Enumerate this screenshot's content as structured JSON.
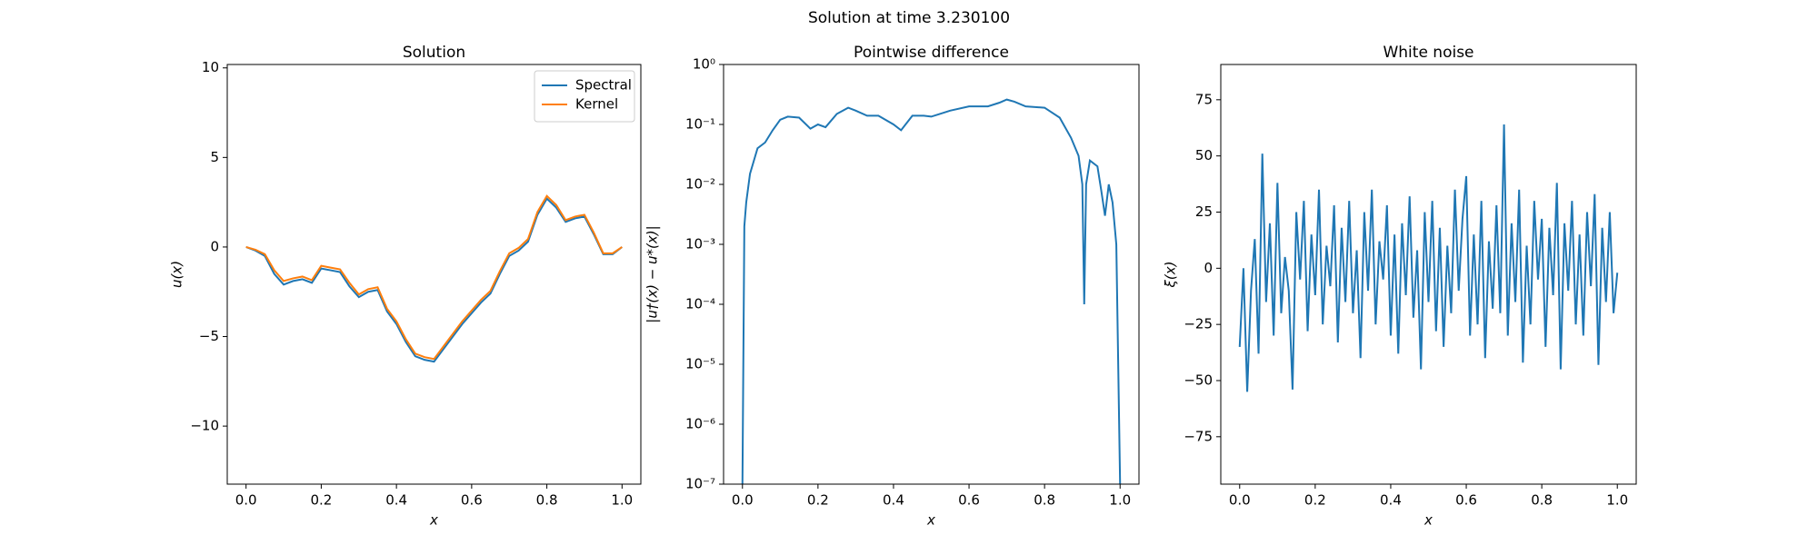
{
  "suptitle": "Solution at time 3.230100",
  "chart_data": [
    {
      "type": "line",
      "title": "Solution",
      "xlabel": "x",
      "ylabel": "u(x)",
      "legend": "upper right",
      "x": [
        0,
        0.025,
        0.05,
        0.075,
        0.1,
        0.125,
        0.15,
        0.175,
        0.2,
        0.225,
        0.25,
        0.275,
        0.3,
        0.325,
        0.35,
        0.375,
        0.4,
        0.425,
        0.45,
        0.475,
        0.5,
        0.525,
        0.55,
        0.575,
        0.6,
        0.625,
        0.65,
        0.675,
        0.7,
        0.725,
        0.75,
        0.775,
        0.8,
        0.825,
        0.85,
        0.875,
        0.9,
        0.925,
        0.95,
        0.975,
        1
      ],
      "series": [
        {
          "name": "Spectral",
          "color": "#1f77b4",
          "values": [
            0,
            -0.2,
            -0.5,
            -1.5,
            -2.1,
            -1.9,
            -1.8,
            -2.0,
            -1.2,
            -1.3,
            -1.4,
            -2.2,
            -2.8,
            -2.5,
            -2.4,
            -3.6,
            -4.3,
            -5.3,
            -6.1,
            -6.3,
            -6.4,
            -5.7,
            -5.0,
            -4.3,
            -3.7,
            -3.1,
            -2.6,
            -1.5,
            -0.5,
            -0.2,
            0.3,
            1.8,
            2.7,
            2.2,
            1.4,
            1.6,
            1.7,
            0.7,
            -0.4,
            -0.4,
            0
          ]
        },
        {
          "name": "Kernel",
          "color": "#ff7f0e",
          "values": [
            0,
            -0.15,
            -0.4,
            -1.3,
            -1.9,
            -1.75,
            -1.65,
            -1.85,
            -1.05,
            -1.15,
            -1.25,
            -2.0,
            -2.65,
            -2.35,
            -2.25,
            -3.45,
            -4.15,
            -5.15,
            -5.95,
            -6.15,
            -6.25,
            -5.55,
            -4.85,
            -4.15,
            -3.55,
            -2.95,
            -2.45,
            -1.35,
            -0.35,
            -0.05,
            0.45,
            1.95,
            2.85,
            2.35,
            1.5,
            1.7,
            1.8,
            0.8,
            -0.35,
            -0.35,
            0
          ]
        }
      ],
      "xlim": [
        -0.05,
        1.05
      ],
      "ylim": [
        -13.24,
        10.19
      ],
      "xticks": [
        {
          "value": 0,
          "label": "0.0"
        },
        0.2,
        0.4,
        0.6,
        0.8,
        {
          "value": 1,
          "label": "1.0"
        }
      ],
      "yticks": [
        {
          "value": -10,
          "label": "−10"
        },
        {
          "value": -5,
          "label": "−5"
        },
        0,
        5,
        10
      ]
    },
    {
      "type": "line",
      "title": "Pointwise difference",
      "xlabel": "x",
      "ylabel": "|u†(x) − u*(x)|",
      "log_y": true,
      "x": [
        0,
        0.005,
        0.01,
        0.02,
        0.04,
        0.06,
        0.08,
        0.1,
        0.12,
        0.15,
        0.18,
        0.2,
        0.22,
        0.25,
        0.28,
        0.3,
        0.33,
        0.36,
        0.4,
        0.42,
        0.45,
        0.48,
        0.5,
        0.55,
        0.6,
        0.65,
        0.68,
        0.7,
        0.72,
        0.75,
        0.8,
        0.84,
        0.87,
        0.89,
        0.9,
        0.905,
        0.91,
        0.92,
        0.94,
        0.95,
        0.96,
        0.97,
        0.98,
        0.99,
        1
      ],
      "series": [
        {
          "color": "#1f77b4",
          "values": [
            1e-07,
            0.002,
            0.005,
            0.015,
            0.04,
            0.05,
            0.08,
            0.12,
            0.135,
            0.13,
            0.085,
            0.1,
            0.09,
            0.15,
            0.19,
            0.17,
            0.14,
            0.14,
            0.1,
            0.08,
            0.14,
            0.14,
            0.135,
            0.17,
            0.2,
            0.2,
            0.23,
            0.26,
            0.24,
            0.2,
            0.19,
            0.13,
            0.06,
            0.03,
            0.01,
            0.0001,
            0.01,
            0.025,
            0.02,
            0.008,
            0.003,
            0.01,
            0.005,
            0.001,
            1e-07
          ]
        }
      ],
      "xlim": [
        -0.05,
        1.05
      ],
      "ylim": [
        1e-07,
        1
      ],
      "xticks": [
        {
          "value": 0,
          "label": "0.0"
        },
        0.2,
        0.4,
        0.6,
        0.8,
        {
          "value": 1,
          "label": "1.0"
        }
      ],
      "yticks": [
        {
          "value": 1e-07,
          "label": "10⁻⁷"
        },
        {
          "value": 1e-06,
          "label": "10⁻⁶"
        },
        {
          "value": 1e-05,
          "label": "10⁻⁵"
        },
        {
          "value": 0.0001,
          "label": "10⁻⁴"
        },
        {
          "value": 0.001,
          "label": "10⁻³"
        },
        {
          "value": 0.01,
          "label": "10⁻²"
        },
        {
          "value": 0.1,
          "label": "10⁻¹"
        },
        {
          "value": 1,
          "label": "10⁰"
        }
      ]
    },
    {
      "type": "line",
      "title": "White noise",
      "xlabel": "x",
      "ylabel": "ξ(x)",
      "x": [
        0,
        0.01,
        0.02,
        0.03,
        0.04,
        0.05,
        0.06,
        0.07,
        0.08,
        0.09,
        0.1,
        0.11,
        0.12,
        0.13,
        0.14,
        0.15,
        0.16,
        0.17,
        0.18,
        0.19,
        0.2,
        0.21,
        0.22,
        0.23,
        0.24,
        0.25,
        0.26,
        0.27,
        0.28,
        0.29,
        0.3,
        0.31,
        0.32,
        0.33,
        0.34,
        0.35,
        0.36,
        0.37,
        0.38,
        0.39,
        0.4,
        0.41,
        0.42,
        0.43,
        0.44,
        0.45,
        0.46,
        0.47,
        0.48,
        0.49,
        0.5,
        0.51,
        0.52,
        0.53,
        0.54,
        0.55,
        0.56,
        0.57,
        0.58,
        0.59,
        0.6,
        0.61,
        0.62,
        0.63,
        0.64,
        0.65,
        0.66,
        0.67,
        0.68,
        0.69,
        0.7,
        0.71,
        0.72,
        0.73,
        0.74,
        0.75,
        0.76,
        0.77,
        0.78,
        0.79,
        0.8,
        0.81,
        0.82,
        0.83,
        0.84,
        0.85,
        0.86,
        0.87,
        0.88,
        0.89,
        0.9,
        0.91,
        0.92,
        0.93,
        0.94,
        0.95,
        0.96,
        0.97,
        0.98,
        0.99,
        1
      ],
      "series": [
        {
          "color": "#1f77b4",
          "values": [
            -35,
            0,
            -55,
            -10,
            13,
            -38,
            51,
            -15,
            20,
            -30,
            38,
            -20,
            5,
            -10,
            -54,
            25,
            -5,
            30,
            -28,
            15,
            -12,
            35,
            -25,
            10,
            -8,
            28,
            -33,
            18,
            -15,
            30,
            -20,
            8,
            -40,
            25,
            -10,
            35,
            -25,
            12,
            -5,
            28,
            -30,
            15,
            -38,
            20,
            -12,
            32,
            -22,
            8,
            -45,
            25,
            -15,
            30,
            -28,
            18,
            -35,
            10,
            -20,
            35,
            -10,
            22,
            41,
            -30,
            15,
            -25,
            30,
            -40,
            12,
            -18,
            28,
            -20,
            64,
            -30,
            20,
            -15,
            35,
            -42,
            10,
            -25,
            30,
            -5,
            22,
            -35,
            18,
            -12,
            38,
            -45,
            20,
            -10,
            30,
            -25,
            15,
            -30,
            25,
            -8,
            33,
            -43,
            18,
            -15,
            25,
            -20,
            -2
          ]
        }
      ],
      "xlim": [
        -0.05,
        1.05
      ],
      "ylim": [
        -96.1,
        90.7
      ],
      "xticks": [
        {
          "value": 0,
          "label": "0.0"
        },
        0.2,
        0.4,
        0.6,
        0.8,
        {
          "value": 1,
          "label": "1.0"
        }
      ],
      "yticks": [
        {
          "value": -75,
          "label": "−75"
        },
        {
          "value": -50,
          "label": "−50"
        },
        {
          "value": -25,
          "label": "−25"
        },
        0,
        25,
        50,
        75
      ]
    }
  ]
}
